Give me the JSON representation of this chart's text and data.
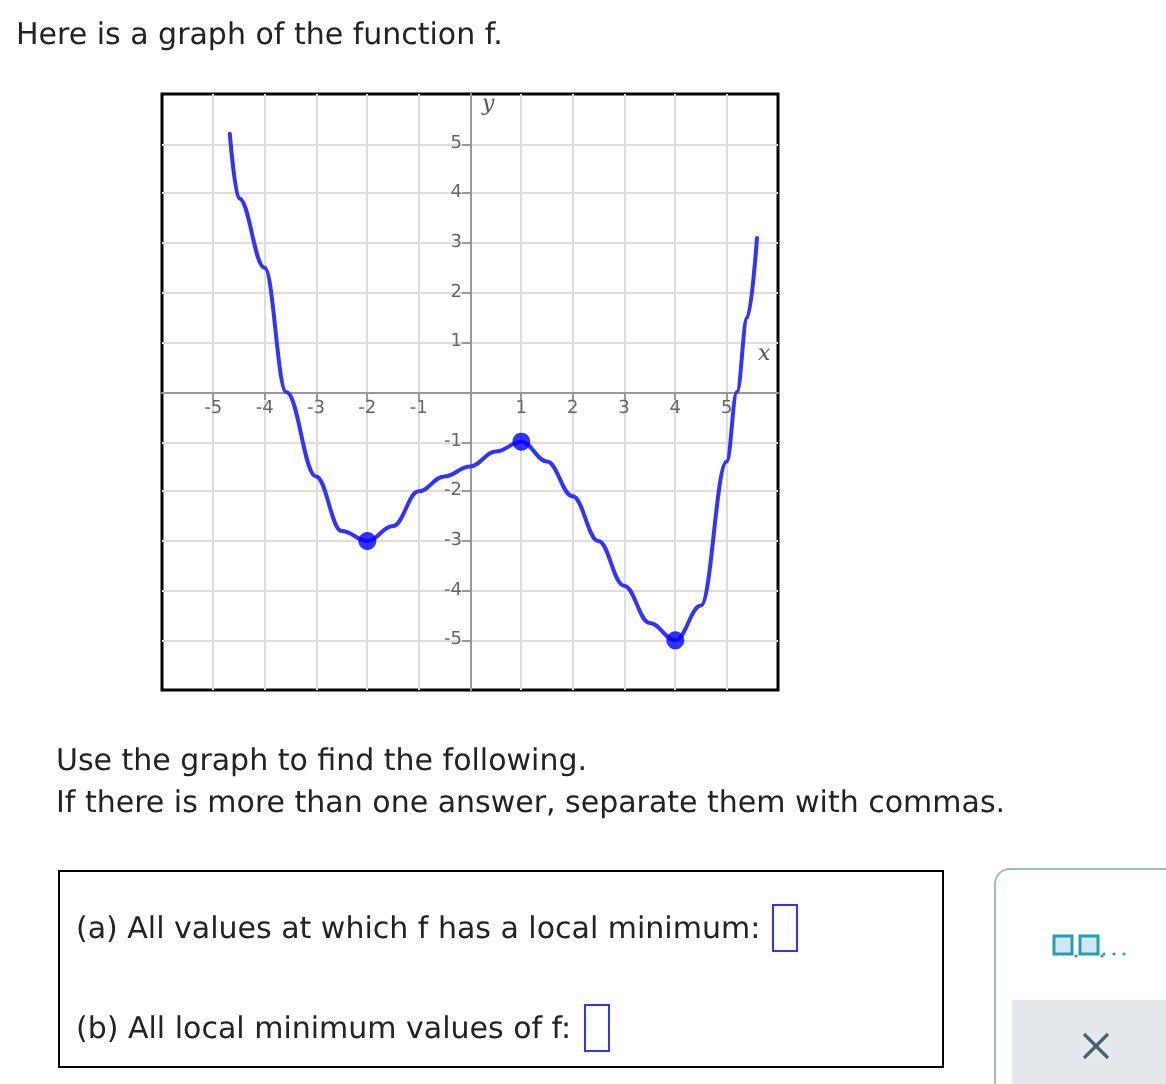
{
  "chart_data": {
    "type": "line",
    "title": "Here is a graph of the function f.",
    "xlabel": "x",
    "ylabel": "y",
    "xlim": [
      -6,
      6
    ],
    "ylim": [
      -6,
      6
    ],
    "xticks": [
      -5,
      -4,
      -3,
      -2,
      -1,
      1,
      2,
      3,
      4,
      5
    ],
    "yticks": [
      -5,
      -4,
      -3,
      -2,
      -1,
      1,
      2,
      3,
      4,
      5
    ],
    "grid": true,
    "series": [
      {
        "type": "line",
        "color": "#3333ff",
        "x": [
          -4.68,
          -4.5,
          -4,
          -3.58,
          -3,
          -2.5,
          -2,
          -1.5,
          -1,
          -0.5,
          0,
          0.5,
          1,
          1.5,
          2,
          2.5,
          3,
          3.5,
          4,
          4.5,
          5,
          5.2,
          5.4,
          5.59
        ],
        "values": [
          5.2,
          3.9,
          2.5,
          0,
          -1.7,
          -2.8,
          -3,
          -2.7,
          -2.0,
          -1.7,
          -1.5,
          -1.2,
          -1,
          -1.4,
          -2.1,
          -3,
          -3.9,
          -4.65,
          -5,
          -4.3,
          -1.4,
          0,
          1.5,
          3.1
        ]
      },
      {
        "type": "scatter",
        "color": "#0000ff",
        "marker": "circle",
        "x": [
          -2,
          1,
          4
        ],
        "values": [
          -3,
          -1,
          -5
        ]
      }
    ],
    "annotations": [
      "Use the graph to find the following.",
      "If there is more than one answer, separate them with commas.",
      "(a) All values at which f has a local minimum:",
      "(b) All local minimum values of f:"
    ]
  }
}
